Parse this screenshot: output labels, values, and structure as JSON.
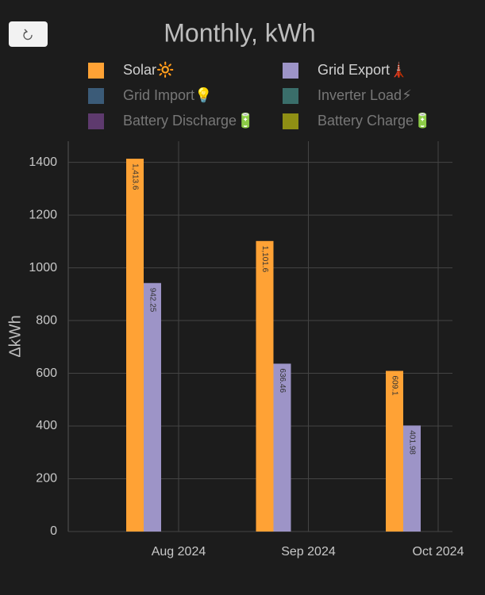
{
  "chart_data": {
    "type": "bar",
    "title": "Monthly, kWh",
    "ylabel": "ΔkWh",
    "x": [
      "2024-08",
      "2024-09",
      "2024-10"
    ],
    "xticks": [
      {
        "value": "2024-08",
        "label": "Aug 2024"
      },
      {
        "value": "2024-09",
        "label": "Sep 2024"
      },
      {
        "value": "2024-10",
        "label": "Oct 2024"
      }
    ],
    "series": [
      {
        "name": "Solar🔆",
        "color": "#ffa235",
        "values": [
          1413.6,
          1101.6,
          609.1
        ],
        "value_labels": [
          "1,413.6",
          "1,101.6",
          "609.1"
        ]
      },
      {
        "name": "Grid Export🗼",
        "color": "#9d94c7",
        "values": [
          942.25,
          636.46,
          401.98
        ],
        "value_labels": [
          "942.25",
          "636.46",
          "401.98"
        ]
      },
      {
        "name": "Grid Import💡",
        "color": "#3b5b78",
        "hidden": true,
        "values": [
          null,
          null,
          null
        ]
      },
      {
        "name": "Inverter Load⚡",
        "color": "#3a6e6a",
        "hidden": true,
        "values": [
          null,
          null,
          null
        ]
      },
      {
        "name": "Battery Discharge🔋",
        "color": "#5e3a6e",
        "hidden": true,
        "values": [
          null,
          null,
          null
        ]
      },
      {
        "name": "Battery Charge🔋",
        "color": "#8f8f14",
        "hidden": true,
        "values": [
          null,
          null,
          null
        ]
      }
    ],
    "ylim": [
      0,
      1480
    ],
    "yticks": [
      0,
      200,
      400,
      600,
      800,
      1000,
      1200,
      1400
    ],
    "grid": true
  }
}
